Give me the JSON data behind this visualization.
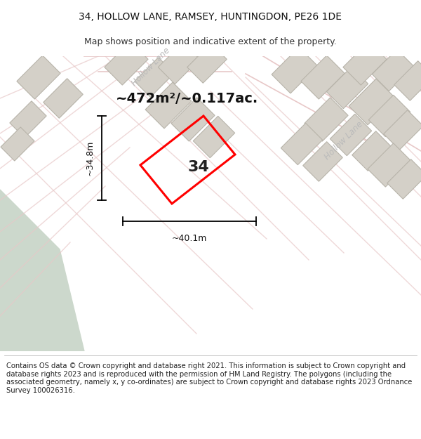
{
  "title": "34, HOLLOW LANE, RAMSEY, HUNTINGDON, PE26 1DE",
  "subtitle": "Map shows position and indicative extent of the property.",
  "footer": "Contains OS data © Crown copyright and database right 2021. This information is subject to Crown copyright and database rights 2023 and is reproduced with the permission of HM Land Registry. The polygons (including the associated geometry, namely x, y co-ordinates) are subject to Crown copyright and database rights 2023 Ordnance Survey 100026316.",
  "area_text": "~472m²/~0.117ac.",
  "dim_width": "~40.1m",
  "dim_height": "~34.8m",
  "property_number": "34",
  "map_bg": "#f2f0ee",
  "green_color": "#ccd8cc",
  "road_color": "#e8c8c8",
  "building_color": "#d4d0c8",
  "building_outline": "#b8b4aa",
  "property_color": "#ff0000",
  "title_fontsize": 10,
  "subtitle_fontsize": 9,
  "footer_fontsize": 7.2,
  "area_fontsize": 14,
  "number_fontsize": 16,
  "dim_fontsize": 9
}
